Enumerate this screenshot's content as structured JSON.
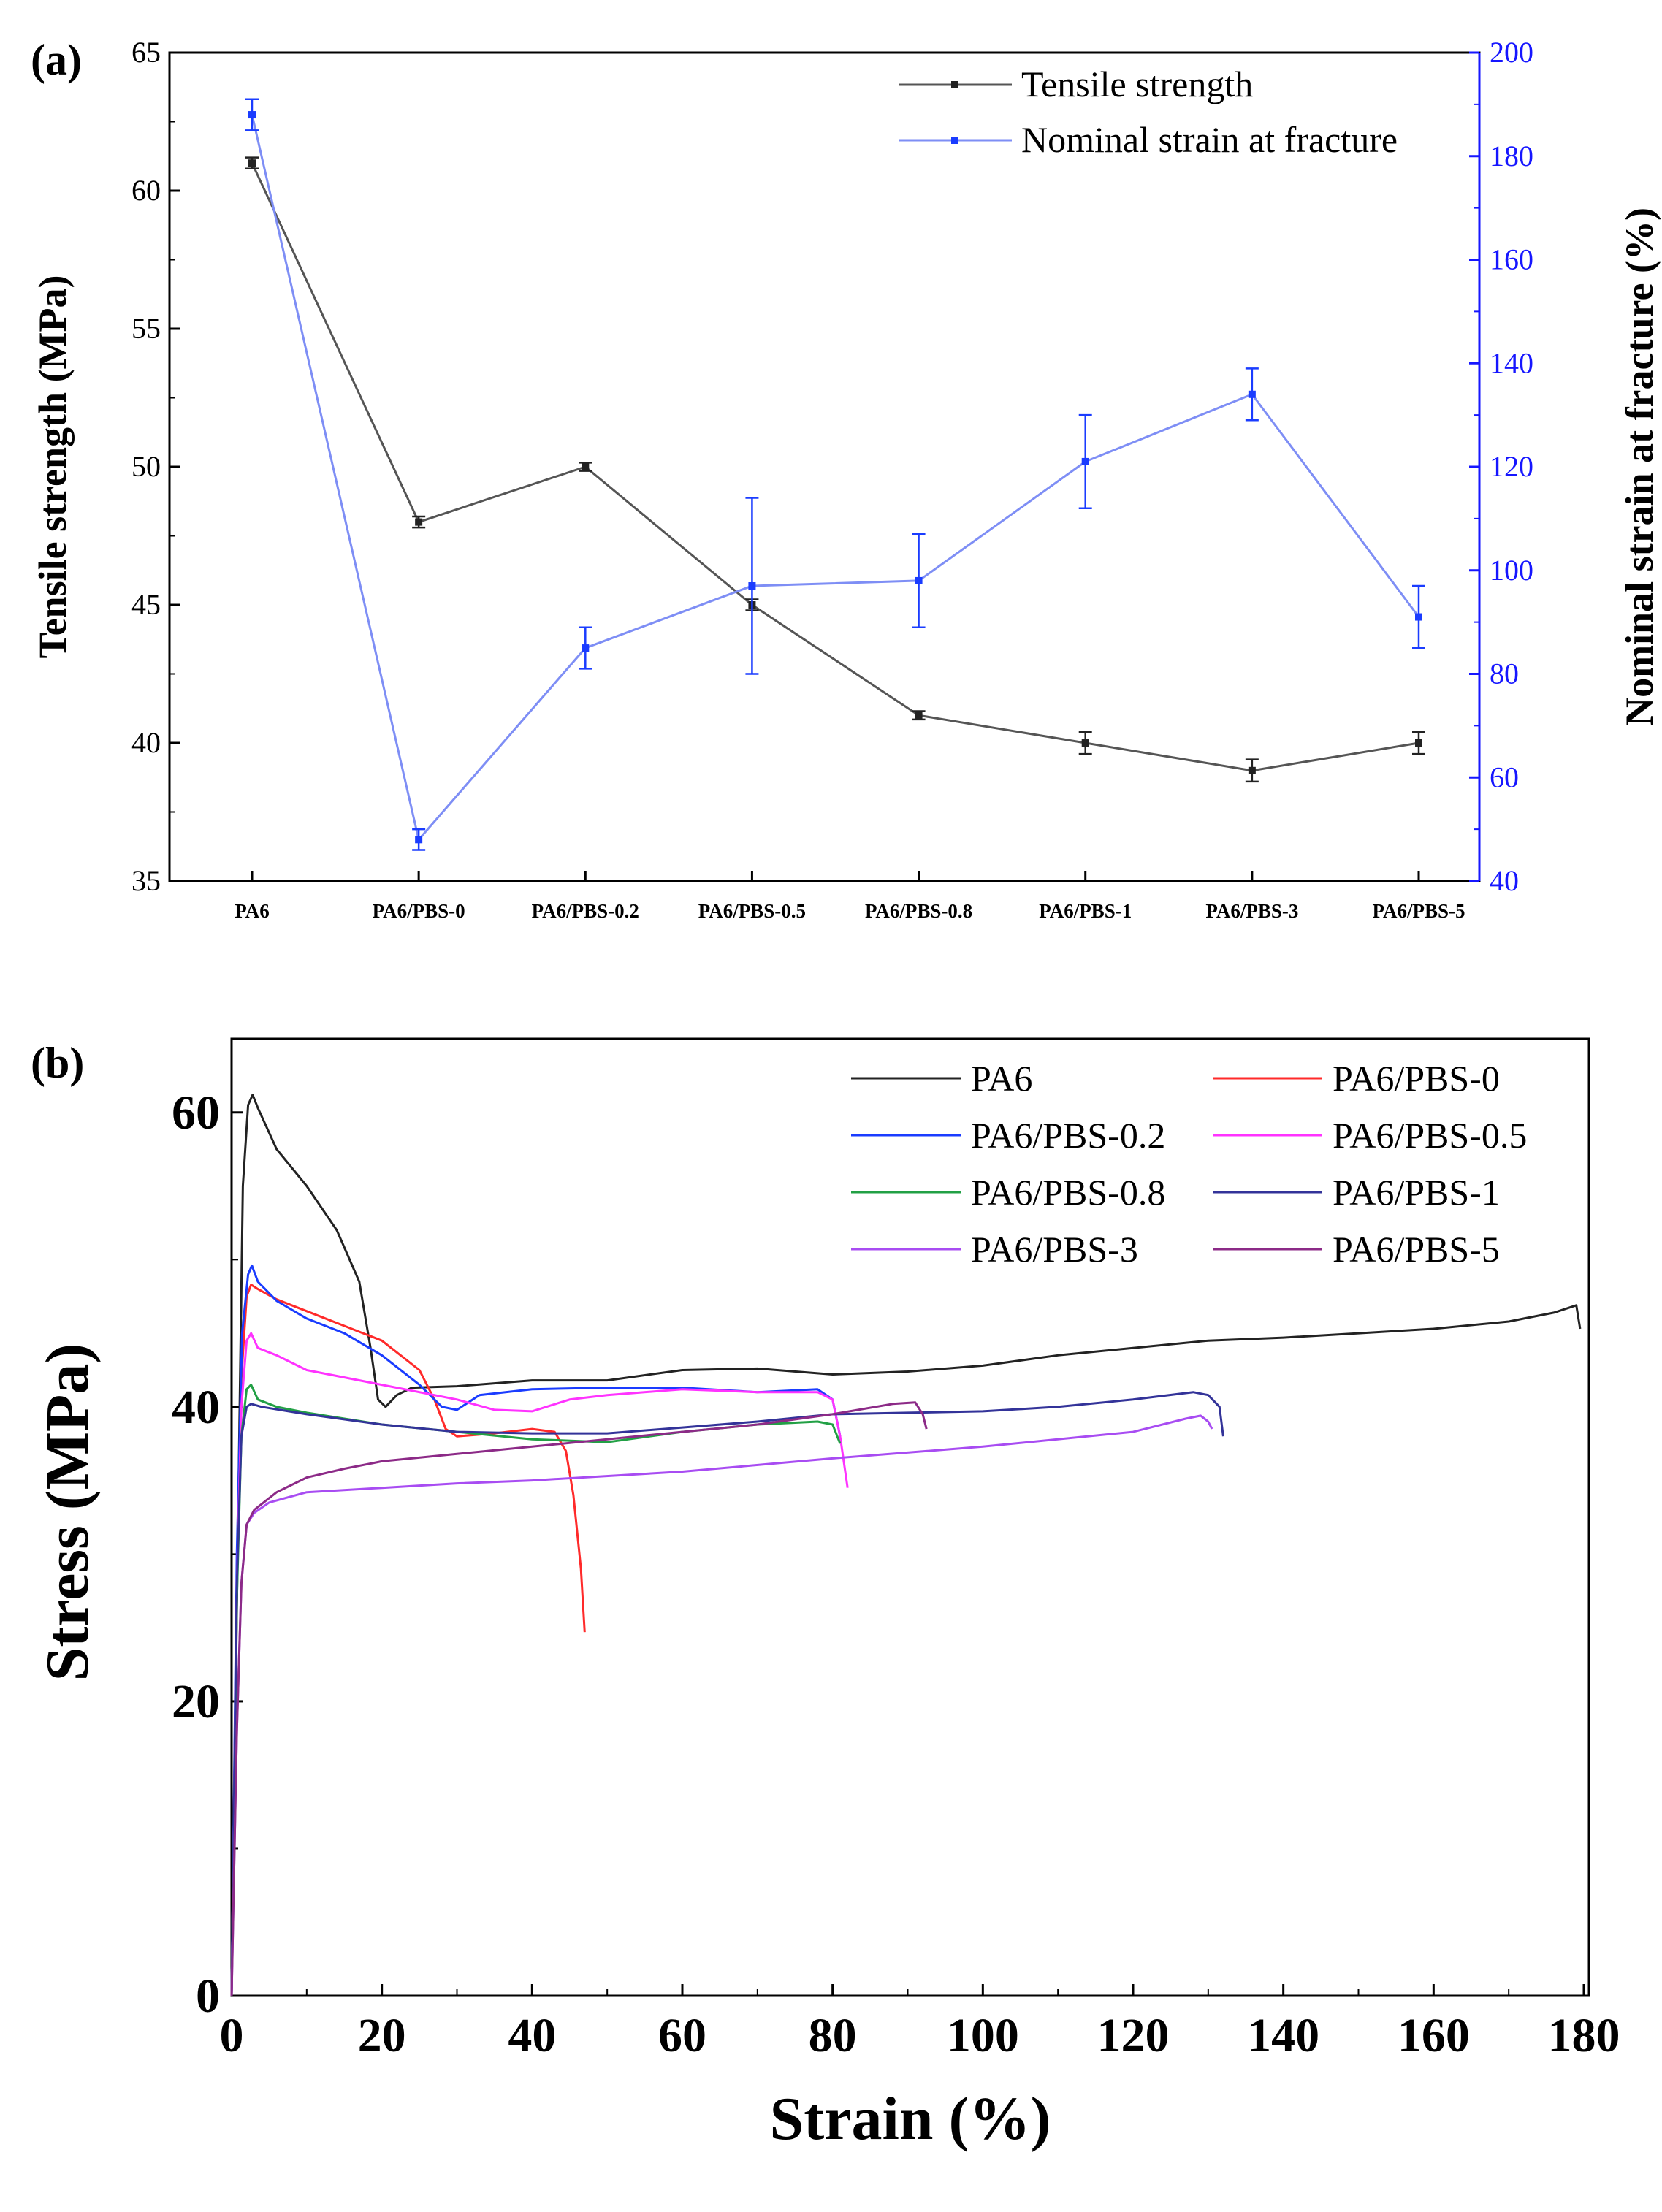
{
  "colors": {
    "tensile": "#555555",
    "strain": "#7e8ef5",
    "right_axis": "#1616ff",
    "PA6": "#222222",
    "PA6/PBS-0": "#ff2a2a",
    "PA6/PBS-0.2": "#1a3cff",
    "PA6/PBS-0.5": "#ff33ff",
    "PA6/PBS-0.8": "#22a045",
    "PA6/PBS-1": "#333399",
    "PA6/PBS-3": "#a84cf2",
    "PA6/PBS-5": "#8c2a87"
  },
  "chart_data": [
    {
      "panel_label": "(a)",
      "type": "line",
      "categories": [
        "PA6",
        "PA6/PBS-0",
        "PA6/PBS-0.2",
        "PA6/PBS-0.5",
        "PA6/PBS-0.8",
        "PA6/PBS-1",
        "PA6/PBS-3",
        "PA6/PBS-5"
      ],
      "ylabel": "Tensile strength (MPa)",
      "ylim": [
        35,
        65
      ],
      "yticks": [
        "35",
        "40",
        "45",
        "50",
        "55",
        "60",
        "65"
      ],
      "y2label": "Nominal strain at fracture (%)",
      "y2lim": [
        40,
        200
      ],
      "y2ticks": [
        "40",
        "60",
        "80",
        "100",
        "120",
        "140",
        "160",
        "180",
        "200"
      ],
      "legend_position": "top-right",
      "series": [
        {
          "name": "Tensile strength",
          "axis": "left",
          "values": [
            61,
            48,
            50,
            45,
            41,
            40,
            39,
            40
          ],
          "errors": [
            0.2,
            0.2,
            0.15,
            0.2,
            0.15,
            0.4,
            0.4,
            0.4
          ]
        },
        {
          "name": "Nominal strain at fracture",
          "axis": "right",
          "values": [
            188,
            48,
            85,
            97,
            98,
            121,
            134,
            91
          ],
          "errors": [
            3,
            2,
            4,
            17,
            9,
            9,
            5,
            6
          ]
        }
      ]
    },
    {
      "panel_label": "(b)",
      "type": "line",
      "xlabel": "Strain (%)",
      "ylabel": "Stress (MPa)",
      "xlim": [
        0,
        180
      ],
      "ylim": [
        0,
        65
      ],
      "xticks": [
        "0",
        "20",
        "40",
        "60",
        "80",
        "100",
        "120",
        "140",
        "160",
        "180"
      ],
      "yticks": [
        "0",
        "20",
        "40",
        "60"
      ],
      "legend_position": "top-right",
      "series": [
        {
          "name": "PA6",
          "points": [
            [
              0,
              0
            ],
            [
              0.8,
              30
            ],
            [
              1.5,
              55
            ],
            [
              2.2,
              60.5
            ],
            [
              2.8,
              61.2
            ],
            [
              3.5,
              60.3
            ],
            [
              6,
              57.5
            ],
            [
              10,
              55
            ],
            [
              14,
              52
            ],
            [
              17,
              48.5
            ],
            [
              18.5,
              44
            ],
            [
              19.5,
              40.5
            ],
            [
              20.5,
              40
            ],
            [
              22,
              40.8
            ],
            [
              24,
              41.3
            ],
            [
              30,
              41.4
            ],
            [
              40,
              41.8
            ],
            [
              50,
              41.8
            ],
            [
              60,
              42.5
            ],
            [
              70,
              42.6
            ],
            [
              80,
              42.2
            ],
            [
              90,
              42.4
            ],
            [
              100,
              42.8
            ],
            [
              110,
              43.5
            ],
            [
              120,
              44
            ],
            [
              130,
              44.5
            ],
            [
              140,
              44.7
            ],
            [
              150,
              45
            ],
            [
              160,
              45.3
            ],
            [
              170,
              45.8
            ],
            [
              176,
              46.4
            ],
            [
              179,
              46.9
            ],
            [
              179.5,
              45.3
            ]
          ]
        },
        {
          "name": "PA6/PBS-0",
          "points": [
            [
              0,
              0
            ],
            [
              0.7,
              28
            ],
            [
              1.3,
              42
            ],
            [
              2,
              47.5
            ],
            [
              2.6,
              48.3
            ],
            [
              3.5,
              48
            ],
            [
              6,
              47.3
            ],
            [
              10,
              46.5
            ],
            [
              15,
              45.5
            ],
            [
              20,
              44.5
            ],
            [
              25,
              42.5
            ],
            [
              27,
              40.5
            ],
            [
              28.5,
              38.5
            ],
            [
              30,
              38
            ],
            [
              35,
              38.2
            ],
            [
              40,
              38.5
            ],
            [
              43,
              38.3
            ],
            [
              44.5,
              37
            ],
            [
              45.5,
              34
            ],
            [
              46.5,
              29
            ],
            [
              47,
              24.7
            ]
          ]
        },
        {
          "name": "PA6/PBS-0.2",
          "points": [
            [
              0,
              0
            ],
            [
              0.7,
              30
            ],
            [
              1.4,
              45
            ],
            [
              2.2,
              49
            ],
            [
              2.7,
              49.6
            ],
            [
              3.5,
              48.5
            ],
            [
              6,
              47.2
            ],
            [
              10,
              46
            ],
            [
              15,
              45
            ],
            [
              20,
              43.5
            ],
            [
              25,
              41.5
            ],
            [
              28,
              40
            ],
            [
              30,
              39.8
            ],
            [
              33,
              40.8
            ],
            [
              40,
              41.2
            ],
            [
              50,
              41.3
            ],
            [
              60,
              41.3
            ],
            [
              70,
              41
            ],
            [
              78,
              41.2
            ],
            [
              80,
              40.5
            ],
            [
              81,
              38
            ]
          ]
        },
        {
          "name": "PA6/PBS-0.5",
          "points": [
            [
              0,
              0
            ],
            [
              0.7,
              28
            ],
            [
              1.3,
              40
            ],
            [
              2,
              44.5
            ],
            [
              2.6,
              45
            ],
            [
              3.5,
              44
            ],
            [
              6,
              43.5
            ],
            [
              10,
              42.5
            ],
            [
              20,
              41.5
            ],
            [
              30,
              40.5
            ],
            [
              35,
              39.8
            ],
            [
              40,
              39.7
            ],
            [
              45,
              40.5
            ],
            [
              50,
              40.8
            ],
            [
              60,
              41.2
            ],
            [
              70,
              41
            ],
            [
              78,
              41
            ],
            [
              80,
              40.5
            ],
            [
              81,
              38
            ],
            [
              82,
              34.5
            ]
          ]
        },
        {
          "name": "PA6/PBS-0.8",
          "points": [
            [
              0,
              0
            ],
            [
              0.7,
              27
            ],
            [
              1.3,
              38
            ],
            [
              2,
              41.2
            ],
            [
              2.6,
              41.5
            ],
            [
              3.5,
              40.5
            ],
            [
              6,
              40
            ],
            [
              10,
              39.6
            ],
            [
              20,
              38.8
            ],
            [
              30,
              38.3
            ],
            [
              40,
              37.8
            ],
            [
              50,
              37.6
            ],
            [
              60,
              38.3
            ],
            [
              70,
              38.8
            ],
            [
              78,
              39
            ],
            [
              80,
              38.8
            ],
            [
              81,
              37.5
            ]
          ]
        },
        {
          "name": "PA6/PBS-1",
          "points": [
            [
              0,
              0
            ],
            [
              0.7,
              28
            ],
            [
              1.3,
              38
            ],
            [
              2,
              40
            ],
            [
              2.6,
              40.2
            ],
            [
              4,
              40
            ],
            [
              10,
              39.5
            ],
            [
              20,
              38.8
            ],
            [
              30,
              38.3
            ],
            [
              40,
              38.2
            ],
            [
              50,
              38.2
            ],
            [
              60,
              38.6
            ],
            [
              70,
              39
            ],
            [
              80,
              39.5
            ],
            [
              90,
              39.6
            ],
            [
              100,
              39.7
            ],
            [
              110,
              40
            ],
            [
              120,
              40.5
            ],
            [
              128,
              41
            ],
            [
              130,
              40.8
            ],
            [
              131.5,
              40
            ],
            [
              132,
              38
            ]
          ]
        },
        {
          "name": "PA6/PBS-3",
          "points": [
            [
              0,
              0
            ],
            [
              0.7,
              18
            ],
            [
              1.3,
              28
            ],
            [
              2,
              32
            ],
            [
              3,
              32.8
            ],
            [
              5,
              33.5
            ],
            [
              10,
              34.2
            ],
            [
              20,
              34.5
            ],
            [
              30,
              34.8
            ],
            [
              40,
              35
            ],
            [
              60,
              35.6
            ],
            [
              80,
              36.5
            ],
            [
              100,
              37.3
            ],
            [
              120,
              38.3
            ],
            [
              127,
              39.2
            ],
            [
              129,
              39.4
            ],
            [
              130,
              39
            ],
            [
              130.5,
              38.5
            ]
          ]
        },
        {
          "name": "PA6/PBS-5",
          "points": [
            [
              0,
              0
            ],
            [
              0.7,
              18
            ],
            [
              1.3,
              28
            ],
            [
              2,
              32
            ],
            [
              3,
              33
            ],
            [
              6,
              34.2
            ],
            [
              10,
              35.2
            ],
            [
              15,
              35.8
            ],
            [
              20,
              36.3
            ],
            [
              30,
              36.8
            ],
            [
              40,
              37.3
            ],
            [
              50,
              37.8
            ],
            [
              60,
              38.3
            ],
            [
              70,
              38.8
            ],
            [
              80,
              39.5
            ],
            [
              88,
              40.2
            ],
            [
              91,
              40.3
            ],
            [
              92,
              39.5
            ],
            [
              92.5,
              38.5
            ]
          ]
        }
      ]
    }
  ]
}
